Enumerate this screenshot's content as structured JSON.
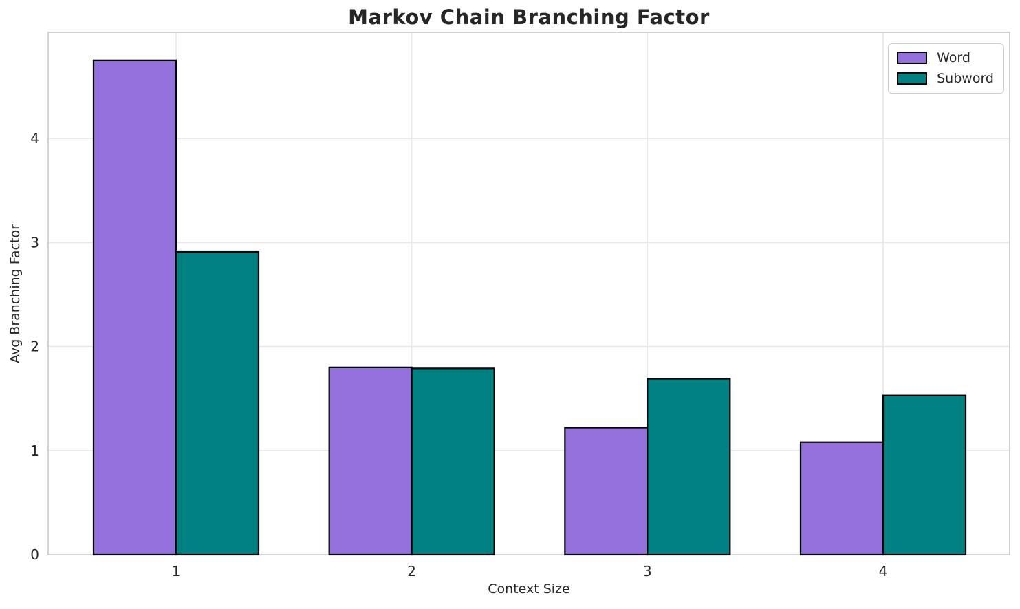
{
  "chart_data": {
    "type": "bar",
    "title": "Markov Chain Branching Factor",
    "xlabel": "Context Size",
    "ylabel": "Avg Branching Factor",
    "categories": [
      "1",
      "2",
      "3",
      "4"
    ],
    "series": [
      {
        "name": "Word",
        "color": "#9370DB",
        "values": [
          4.75,
          1.8,
          1.22,
          1.08
        ]
      },
      {
        "name": "Subword",
        "color": "#008080",
        "values": [
          2.91,
          1.79,
          1.69,
          1.53
        ]
      }
    ],
    "bar_edge_color": "#000000",
    "yticks": [
      0,
      1,
      2,
      3,
      4
    ],
    "ylim": [
      0,
      5.02
    ],
    "grid": true,
    "legend_position": "upper right"
  },
  "styles": {
    "background": "#ffffff",
    "grid_color": "#e8e8e8",
    "spine_color": "#d2d2d2",
    "text_color": "#262626",
    "title_color": "#262626"
  }
}
